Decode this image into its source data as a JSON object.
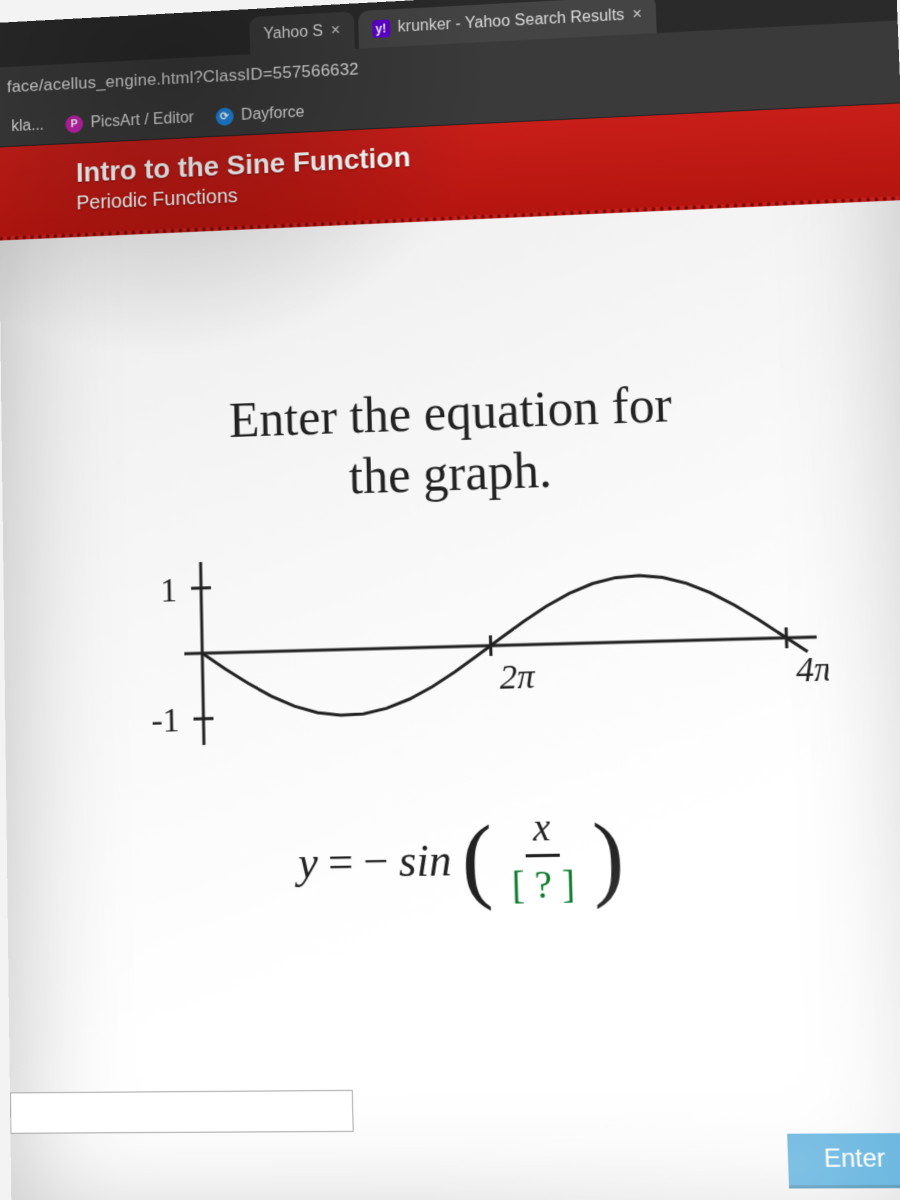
{
  "browser": {
    "tabs": [
      {
        "title": "Yahoo S",
        "favicon_text": "",
        "favicon_bg": "#777"
      },
      {
        "title": "krunker - Yahoo Search Results",
        "favicon_text": "y!",
        "favicon_bg": "#5f01d1"
      }
    ],
    "url_fragment": "face/acellus_engine.html?ClassID=557566632",
    "bookmarks": [
      {
        "label": "kla...",
        "favicon_text": "",
        "favicon_bg": "#777"
      },
      {
        "label": "PicsArt / Editor",
        "favicon_text": "P",
        "favicon_bg": "#c724b1"
      },
      {
        "label": "Dayforce",
        "favicon_text": "⟳",
        "favicon_bg": "#1e88e5"
      }
    ]
  },
  "lesson": {
    "title": "Intro to the Sine Function",
    "subtitle": "Periodic Functions",
    "header_bg": "#c81e19"
  },
  "problem": {
    "prompt_line1": "Enter the equation for",
    "prompt_line2": "the graph.",
    "graph": {
      "type": "line",
      "xlim": [
        0,
        13.2
      ],
      "ylim": [
        -1.4,
        1.4
      ],
      "y_ticks": [
        1,
        -1
      ],
      "y_tick_labels": [
        "1",
        "-1"
      ],
      "x_ticks": [
        6.2832,
        12.566
      ],
      "x_tick_labels": [
        "2π",
        "4π"
      ],
      "axis_color": "#222222",
      "curve_color": "#222222",
      "line_width": 3,
      "curve_points": [
        [
          0.0,
          0.0
        ],
        [
          0.5,
          -0.247
        ],
        [
          1.0,
          -0.479
        ],
        [
          1.5,
          -0.682
        ],
        [
          2.0,
          -0.841
        ],
        [
          2.5,
          -0.949
        ],
        [
          3.0,
          -0.997
        ],
        [
          3.5,
          -0.984
        ],
        [
          4.0,
          -0.909
        ],
        [
          4.5,
          -0.778
        ],
        [
          5.0,
          -0.599
        ],
        [
          5.5,
          -0.382
        ],
        [
          6.0,
          -0.141
        ],
        [
          6.2832,
          0.0
        ],
        [
          6.5,
          0.108
        ],
        [
          7.0,
          0.35
        ],
        [
          7.5,
          0.572
        ],
        [
          8.0,
          0.757
        ],
        [
          8.5,
          0.894
        ],
        [
          9.0,
          0.974
        ],
        [
          9.5,
          0.995
        ],
        [
          10.0,
          0.955
        ],
        [
          10.5,
          0.858
        ],
        [
          11.0,
          0.706
        ],
        [
          11.5,
          0.508
        ],
        [
          12.0,
          0.279
        ],
        [
          12.566,
          0.0
        ],
        [
          13.0,
          -0.215
        ]
      ]
    },
    "equation": {
      "lhs": "y",
      "equals": " = ",
      "neg": "− ",
      "fn": "sin",
      "numerator": "x",
      "answer_placeholder": "[ ? ]",
      "answer_color": "#0a7a2b"
    },
    "enter_label": "Enter"
  }
}
